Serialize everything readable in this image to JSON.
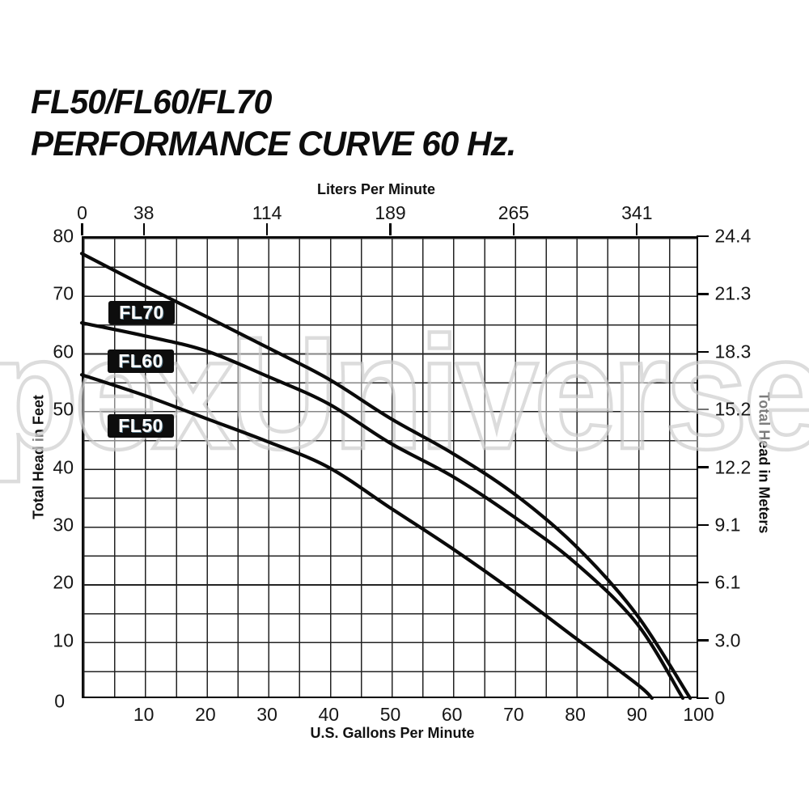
{
  "page": {
    "title_line1": "FL50/FL60/FL70",
    "title_line2": "PERFORMANCE CURVE 60 Hz.",
    "watermark": "pexUniverse"
  },
  "colors": {
    "curve": "#0a0a0a",
    "grid": "#232323",
    "label_box_bg": "#0d0d0d",
    "label_box_text": "#ffffff",
    "watermark_stroke": "#c9c9c9",
    "watermark_fill": "rgba(255,255,255,0.45)"
  },
  "chart_data": {
    "type": "line",
    "title": "FL50/FL60/FL70 Performance Curve 60 Hz.",
    "grid": {
      "x_step_gpm": 5,
      "y_step_ft": 5,
      "grid_on": true
    },
    "x_bottom": {
      "label": "U.S. Gallons Per Minute",
      "range": [
        0,
        100
      ],
      "origin_label": "0",
      "ticks": [
        10,
        20,
        30,
        40,
        50,
        60,
        70,
        80,
        90,
        100
      ]
    },
    "x_top": {
      "label": "Liters Per Minute",
      "ticks": [
        {
          "gpm": 0,
          "label": "0"
        },
        {
          "gpm": 10,
          "label": "38"
        },
        {
          "gpm": 30,
          "label": "114"
        },
        {
          "gpm": 50,
          "label": "189"
        },
        {
          "gpm": 70,
          "label": "265"
        },
        {
          "gpm": 90,
          "label": "341"
        }
      ]
    },
    "y_left": {
      "label": "Total Head in Feet",
      "range": [
        0,
        80
      ],
      "ticks": [
        80,
        70,
        60,
        50,
        40,
        30,
        20,
        10,
        0
      ]
    },
    "y_right": {
      "label": "Total Head in Meters",
      "ticks": [
        {
          "ft": 80,
          "label": "24.4"
        },
        {
          "ft": 70,
          "label": "21.3"
        },
        {
          "ft": 60,
          "label": "18.3"
        },
        {
          "ft": 50,
          "label": "15.2"
        },
        {
          "ft": 40,
          "label": "12.2"
        },
        {
          "ft": 30,
          "label": "9.1"
        },
        {
          "ft": 20,
          "label": "6.1"
        },
        {
          "ft": 10,
          "label": "3.0"
        },
        {
          "ft": 0,
          "label": "0"
        }
      ]
    },
    "series": [
      {
        "name": "FL70",
        "points_gpm_ft": [
          [
            0,
            77
          ],
          [
            10,
            71.5
          ],
          [
            20,
            66.2
          ],
          [
            30,
            60.8
          ],
          [
            40,
            55.3
          ],
          [
            50,
            48.5
          ],
          [
            60,
            42.5
          ],
          [
            70,
            35.5
          ],
          [
            80,
            26.5
          ],
          [
            90,
            14.5
          ],
          [
            98.7,
            0
          ]
        ]
      },
      {
        "name": "FL60",
        "points_gpm_ft": [
          [
            0,
            65
          ],
          [
            10,
            62.8
          ],
          [
            20,
            60.2
          ],
          [
            30,
            55.8
          ],
          [
            40,
            51
          ],
          [
            50,
            44.2
          ],
          [
            60,
            38.5
          ],
          [
            70,
            31.5
          ],
          [
            80,
            23.5
          ],
          [
            90,
            13
          ],
          [
            97.5,
            0
          ]
        ]
      },
      {
        "name": "FL50",
        "points_gpm_ft": [
          [
            0,
            56
          ],
          [
            10,
            52.5
          ],
          [
            20,
            48.5
          ],
          [
            30,
            44.5
          ],
          [
            40,
            40
          ],
          [
            50,
            33
          ],
          [
            60,
            26
          ],
          [
            70,
            18.5
          ],
          [
            80,
            10.5
          ],
          [
            90,
            2.5
          ],
          [
            92.5,
            0
          ]
        ]
      }
    ]
  }
}
